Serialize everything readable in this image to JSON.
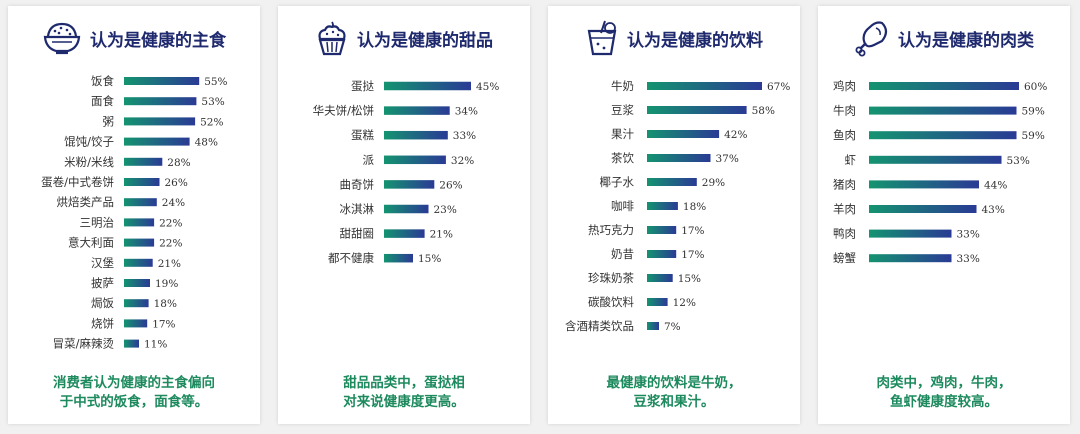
{
  "colors": {
    "bar_start": "#149470",
    "bar_end": "#2a3a95",
    "title": "#1f2a6e",
    "caption": "#1d8a5e",
    "label": "#333333"
  },
  "panels": [
    {
      "title_prefix": "认为是健康的",
      "title_highlight": "主食",
      "icon": "rice-bowl-icon",
      "caption": [
        "消费者认为健康的主食偏向",
        "于中式的饭食，面食等。"
      ]
    },
    {
      "title_prefix": "认为是健康的",
      "title_highlight": "甜品",
      "icon": "cupcake-icon",
      "caption": [
        "甜品品类中，蛋挞相",
        "对来说健康度更高。"
      ]
    },
    {
      "title_prefix": "认为是健康的",
      "title_highlight": "饮料",
      "icon": "drink-cup-icon",
      "caption": [
        "最健康的饮料是牛奶，",
        "豆浆和果汁。"
      ]
    },
    {
      "title_prefix": "认为是健康的",
      "title_highlight": "肉类",
      "icon": "drumstick-icon",
      "caption": [
        "肉类中，鸡肉，牛肉，",
        "鱼虾健康度较高。"
      ]
    }
  ],
  "chart_data": [
    {
      "type": "bar",
      "orientation": "horizontal",
      "categories": [
        "饭食",
        "面食",
        "粥",
        "馄饨/饺子",
        "米粉/米线",
        "蛋卷/中式卷饼",
        "烘焙类产品",
        "三明治",
        "意大利面",
        "汉堡",
        "披萨",
        "焗饭",
        "烧饼",
        "冒菜/麻辣烫"
      ],
      "values": [
        55,
        53,
        52,
        48,
        28,
        26,
        24,
        22,
        22,
        21,
        19,
        18,
        17,
        11
      ],
      "value_labels": [
        "55%",
        "53%",
        "52%",
        "48%",
        "28%",
        "26%",
        "24%",
        "22%",
        "22%",
        "21%",
        "19%",
        "18%",
        "17%",
        "11%"
      ],
      "xlim": [
        0,
        60
      ]
    },
    {
      "type": "bar",
      "orientation": "horizontal",
      "categories": [
        "蛋挞",
        "华夫饼/松饼",
        "蛋糕",
        "派",
        "曲奇饼",
        "冰淇淋",
        "甜甜圈",
        "都不健康"
      ],
      "values": [
        45,
        34,
        33,
        32,
        26,
        23,
        21,
        15
      ],
      "value_labels": [
        "45%",
        "34%",
        "33%",
        "32%",
        "26%",
        "23%",
        "21%",
        "15%"
      ],
      "xlim": [
        0,
        60
      ]
    },
    {
      "type": "bar",
      "orientation": "horizontal",
      "categories": [
        "牛奶",
        "豆浆",
        "果汁",
        "茶饮",
        "椰子水",
        "咖啡",
        "热巧克力",
        "奶昔",
        "珍珠奶茶",
        "碳酸饮料",
        "含酒精类饮品"
      ],
      "values": [
        67,
        58,
        42,
        37,
        29,
        18,
        17,
        17,
        15,
        12,
        7
      ],
      "value_labels": [
        "67%",
        "58%",
        "42%",
        "37%",
        "29%",
        "18%",
        "17%",
        "17%",
        "15%",
        "12%",
        "7%"
      ],
      "xlim": [
        0,
        67
      ]
    },
    {
      "type": "bar",
      "orientation": "horizontal",
      "categories": [
        "鸡肉",
        "牛肉",
        "鱼肉",
        "虾",
        "猪肉",
        "羊肉",
        "鸭肉",
        "螃蟹"
      ],
      "values": [
        60,
        59,
        59,
        53,
        44,
        43,
        33,
        33
      ],
      "value_labels": [
        "60%",
        "59%",
        "59%",
        "53%",
        "44%",
        "43%",
        "33%",
        "33%"
      ],
      "xlim": [
        0,
        60
      ]
    }
  ]
}
